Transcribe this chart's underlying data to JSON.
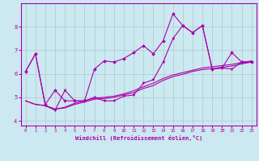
{
  "xlabel": "Windchill (Refroidissement éolien,°C)",
  "background_color": "#cce8f0",
  "grid_color": "#aacccc",
  "line_color": "#aa00aa",
  "xlim": [
    -0.5,
    23.5
  ],
  "ylim": [
    3.8,
    9.0
  ],
  "xticks": [
    0,
    1,
    2,
    3,
    4,
    5,
    6,
    7,
    8,
    9,
    10,
    11,
    12,
    13,
    14,
    15,
    16,
    17,
    18,
    19,
    20,
    21,
    22,
    23
  ],
  "yticks": [
    4,
    5,
    6,
    7,
    8
  ],
  "series1_x": [
    0,
    1,
    2,
    3,
    4,
    5,
    6,
    7,
    8,
    9,
    10,
    11,
    12,
    13,
    14,
    15,
    16,
    17,
    18,
    19,
    20,
    21,
    22,
    23
  ],
  "series1_y": [
    6.1,
    6.85,
    4.7,
    5.3,
    4.85,
    4.85,
    4.85,
    6.2,
    6.55,
    6.5,
    6.65,
    6.9,
    7.2,
    6.85,
    7.4,
    8.55,
    8.05,
    7.75,
    8.05,
    6.2,
    6.25,
    6.9,
    6.5,
    6.5
  ],
  "series2_x": [
    0,
    1,
    2,
    3,
    4,
    5,
    6,
    7,
    8,
    9,
    10,
    11,
    12,
    13,
    14,
    15,
    16,
    17,
    18,
    19,
    20,
    21,
    22,
    23
  ],
  "series2_y": [
    6.1,
    6.85,
    4.65,
    4.45,
    5.3,
    4.85,
    4.85,
    5.0,
    4.85,
    4.85,
    5.05,
    5.1,
    5.6,
    5.75,
    6.5,
    7.5,
    8.05,
    7.75,
    8.05,
    6.2,
    6.25,
    6.2,
    6.5,
    6.5
  ],
  "series3_x": [
    0,
    1,
    2,
    3,
    4,
    5,
    6,
    7,
    8,
    9,
    10,
    11,
    12,
    13,
    14,
    15,
    16,
    17,
    18,
    19,
    20,
    21,
    22,
    23
  ],
  "series3_y": [
    4.85,
    4.7,
    4.65,
    4.5,
    4.55,
    4.7,
    4.8,
    4.92,
    4.95,
    5.0,
    5.1,
    5.2,
    5.38,
    5.5,
    5.72,
    5.88,
    5.98,
    6.1,
    6.18,
    6.22,
    6.28,
    6.33,
    6.42,
    6.5
  ],
  "series4_x": [
    0,
    1,
    2,
    3,
    4,
    5,
    6,
    7,
    8,
    9,
    10,
    11,
    12,
    13,
    14,
    15,
    16,
    17,
    18,
    19,
    20,
    21,
    22,
    23
  ],
  "series4_y": [
    4.85,
    4.7,
    4.65,
    4.5,
    4.58,
    4.75,
    4.85,
    4.97,
    5.0,
    5.05,
    5.15,
    5.28,
    5.45,
    5.6,
    5.8,
    5.95,
    6.05,
    6.15,
    6.25,
    6.3,
    6.35,
    6.4,
    6.48,
    6.55
  ]
}
